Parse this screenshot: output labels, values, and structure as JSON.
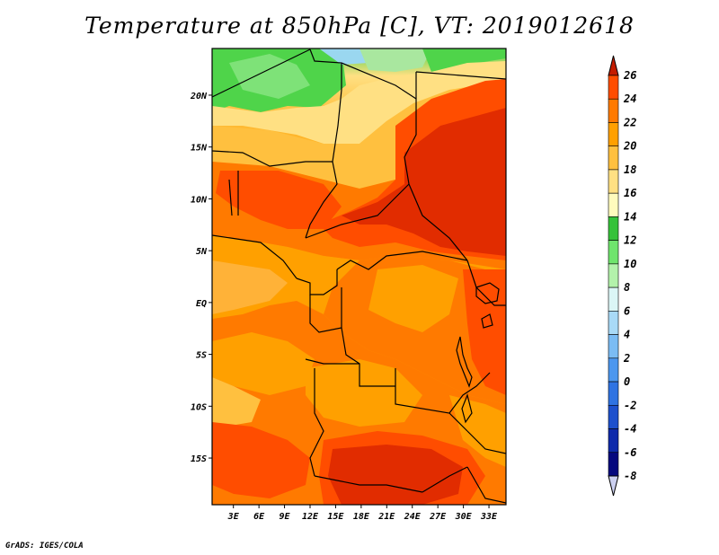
{
  "title": "Temperature at 850hPa [C], VT: 2019012618",
  "credit": "GrADS: IGES/COLA",
  "map": {
    "region": "Central Africa",
    "lat_labels": [
      "20N",
      "15N",
      "10N",
      "5N",
      "EQ",
      "5S",
      "10S",
      "15S"
    ],
    "lon_labels": [
      "3E",
      "6E",
      "9E",
      "12E",
      "15E",
      "18E",
      "21E",
      "24E",
      "27E",
      "30E",
      "33E"
    ],
    "lat_values": [
      20,
      15,
      10,
      5,
      0,
      -5,
      -10,
      -15
    ],
    "lon_values": [
      3,
      6,
      9,
      12,
      15,
      18,
      21,
      24,
      27,
      30,
      33
    ],
    "lat_range": [
      -19.5,
      24.5
    ],
    "lon_range": [
      0.5,
      35.0
    ]
  },
  "colorbar": {
    "labels": [
      "26",
      "24",
      "22",
      "20",
      "18",
      "16",
      "14",
      "12",
      "10",
      "8",
      "6",
      "4",
      "2",
      "0",
      "-2",
      "-4",
      "-6",
      "-8"
    ],
    "colors": [
      "#e12c00",
      "#ff4d00",
      "#ff7a00",
      "#ffa000",
      "#ffc03f",
      "#ffe083",
      "#fffbbd",
      "#35c23a",
      "#6fe46d",
      "#b3f2ab",
      "#dbf6f6",
      "#a9daf7",
      "#7bbcf4",
      "#4c97ef",
      "#2f73e2",
      "#1d50cd",
      "#0e2aab",
      "#05087e"
    ],
    "under_color": "#ccd0f0",
    "over_color": "#c41c00"
  }
}
